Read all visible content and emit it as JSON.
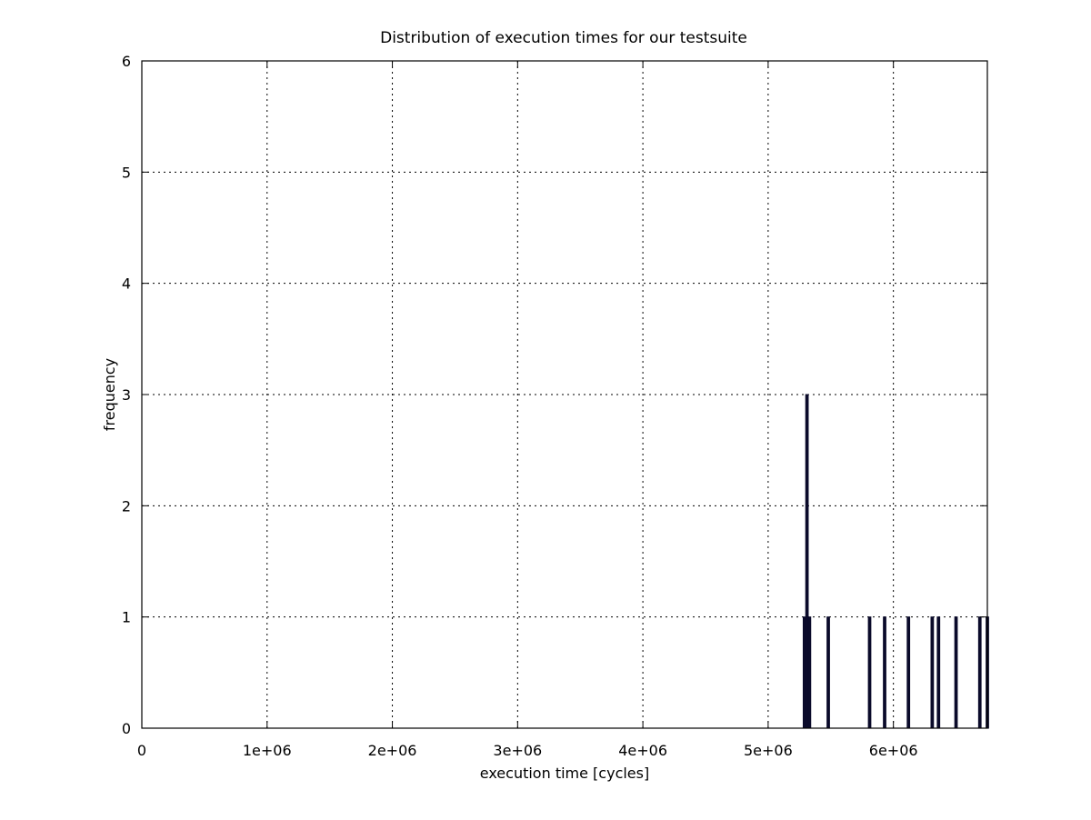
{
  "chart_data": {
    "type": "bar",
    "title": "Distribution of execution times for our testsuite",
    "xlabel": "execution time [cycles]",
    "ylabel": "frequency",
    "xlim": [
      0,
      6750000
    ],
    "ylim": [
      0,
      6
    ],
    "xticks": [
      0,
      1000000,
      2000000,
      3000000,
      4000000,
      5000000,
      6000000
    ],
    "xtick_labels": [
      "0",
      "1e+06",
      "2e+06",
      "3e+06",
      "4e+06",
      "5e+06",
      "6e+06"
    ],
    "yticks": [
      0,
      1,
      2,
      3,
      4,
      5,
      6
    ],
    "ytick_labels": [
      "0",
      "1",
      "2",
      "3",
      "4",
      "5",
      "6"
    ],
    "grid": true,
    "bar_color": "#0b0b2a",
    "bin_width": 20000,
    "bars": [
      {
        "x": 5280000,
        "value": 1
      },
      {
        "x": 5300000,
        "value": 3
      },
      {
        "x": 5320000,
        "value": 1
      },
      {
        "x": 5470000,
        "value": 1
      },
      {
        "x": 5800000,
        "value": 1
      },
      {
        "x": 5920000,
        "value": 1
      },
      {
        "x": 6110000,
        "value": 1
      },
      {
        "x": 6300000,
        "value": 1
      },
      {
        "x": 6350000,
        "value": 1
      },
      {
        "x": 6490000,
        "value": 1
      },
      {
        "x": 6680000,
        "value": 1
      },
      {
        "x": 6740000,
        "value": 1
      }
    ]
  }
}
